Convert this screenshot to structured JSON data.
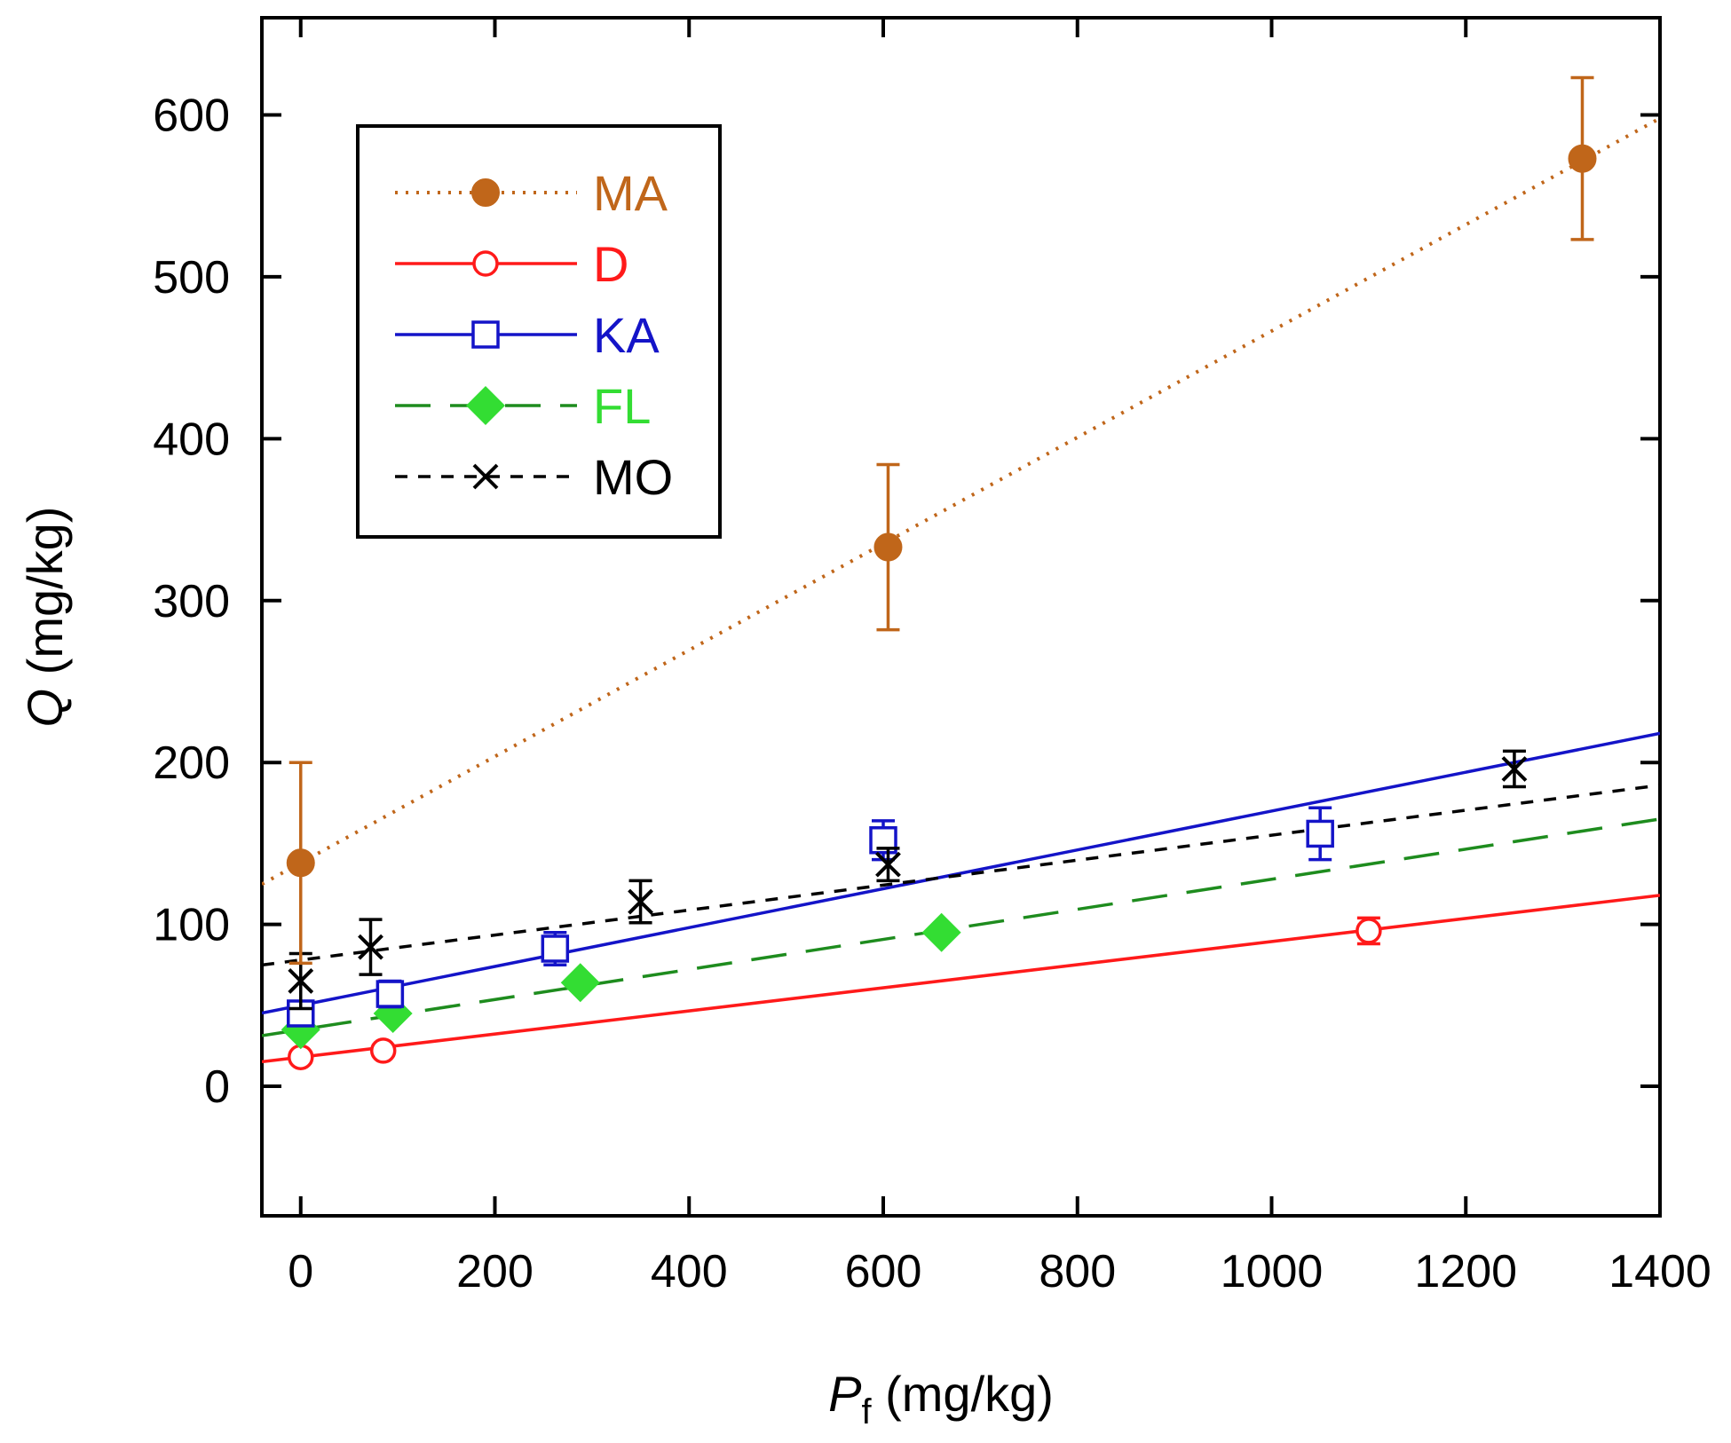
{
  "chart_data": {
    "type": "scatter",
    "xlabel": {
      "symbol": "P",
      "subscript": "f",
      "unit": " (mg/kg)"
    },
    "ylabel": {
      "symbol": "Q",
      "unit": " (mg/kg)"
    },
    "xlim": [
      -40,
      1400
    ],
    "ylim": [
      -80,
      660
    ],
    "xticks": [
      0,
      200,
      400,
      600,
      800,
      1000,
      1200,
      1400
    ],
    "yticks": [
      0,
      100,
      200,
      300,
      400,
      500,
      600
    ],
    "xtick_labels": [
      "0",
      "200",
      "400",
      "600",
      "800",
      "1000",
      "1200",
      "1400"
    ],
    "ytick_labels": [
      "0",
      "100",
      "200",
      "300",
      "400",
      "500",
      "600"
    ],
    "grid": false,
    "legend_position": "top-left",
    "series": [
      {
        "name": "MA",
        "color": "#c0661a",
        "line_style": "dotted",
        "marker": "filled-circle",
        "fit": {
          "intercept": 138,
          "slope": 0.3285
        },
        "points": [
          {
            "x": 0,
            "y": 138,
            "err": 62
          },
          {
            "x": 605,
            "y": 333,
            "err": 51
          },
          {
            "x": 1320,
            "y": 573,
            "err": 50
          }
        ]
      },
      {
        "name": "D",
        "color": "#ff1a1a",
        "line_style": "solid",
        "marker": "open-circle",
        "fit": {
          "intercept": 18,
          "slope": 0.0714
        },
        "points": [
          {
            "x": 0,
            "y": 18,
            "err": 3
          },
          {
            "x": 85,
            "y": 22,
            "err": 3
          },
          {
            "x": 1100,
            "y": 96,
            "err": 8
          }
        ]
      },
      {
        "name": "KA",
        "color": "#1414c8",
        "line_style": "solid",
        "marker": "open-square",
        "fit": {
          "intercept": 50,
          "slope": 0.12
        },
        "points": [
          {
            "x": 0,
            "y": 45,
            "err": 5
          },
          {
            "x": 92,
            "y": 57,
            "err": 8
          },
          {
            "x": 262,
            "y": 85,
            "err": 10
          },
          {
            "x": 600,
            "y": 152,
            "err": 12
          },
          {
            "x": 1050,
            "y": 156,
            "err": 16
          }
        ]
      },
      {
        "name": "FL",
        "color": "#1e8c1e",
        "marker_color": "#33dd33",
        "line_style": "dashed",
        "marker": "filled-diamond",
        "fit": {
          "intercept": 35,
          "slope": 0.0929
        },
        "points": [
          {
            "x": 0,
            "y": 35,
            "err": 0
          },
          {
            "x": 95,
            "y": 45,
            "err": 0
          },
          {
            "x": 288,
            "y": 64,
            "err": 0
          },
          {
            "x": 660,
            "y": 95,
            "err": 0
          }
        ]
      },
      {
        "name": "MO",
        "color": "#000000",
        "line_style": "short-dashed",
        "marker": "x-cross",
        "fit": {
          "intercept": 78,
          "slope": 0.0771
        },
        "points": [
          {
            "x": 0,
            "y": 65,
            "err": 17
          },
          {
            "x": 72,
            "y": 86,
            "err": 17
          },
          {
            "x": 350,
            "y": 114,
            "err": 13
          },
          {
            "x": 605,
            "y": 137,
            "err": 10
          },
          {
            "x": 1250,
            "y": 196,
            "err": 11
          }
        ]
      }
    ]
  }
}
